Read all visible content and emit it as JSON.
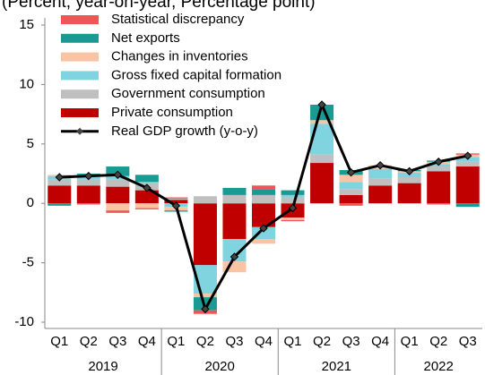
{
  "chart_data": {
    "type": "stacked_bar_line",
    "title": "(Percent, year-on-year, Percentage point)",
    "categories": [
      {
        "quarter": "Q1",
        "year": "2019"
      },
      {
        "quarter": "Q2",
        "year": "2019"
      },
      {
        "quarter": "Q3",
        "year": "2019"
      },
      {
        "quarter": "Q4",
        "year": "2019"
      },
      {
        "quarter": "Q1",
        "year": "2020"
      },
      {
        "quarter": "Q2",
        "year": "2020"
      },
      {
        "quarter": "Q3",
        "year": "2020"
      },
      {
        "quarter": "Q4",
        "year": "2020"
      },
      {
        "quarter": "Q1",
        "year": "2021"
      },
      {
        "quarter": "Q2",
        "year": "2021"
      },
      {
        "quarter": "Q3",
        "year": "2021"
      },
      {
        "quarter": "Q4",
        "year": "2021"
      },
      {
        "quarter": "Q1",
        "year": "2022"
      },
      {
        "quarter": "Q2",
        "year": "2022"
      },
      {
        "quarter": "Q3",
        "year": "2022"
      }
    ],
    "series": [
      {
        "name": "Private consumption",
        "color": "#c00000",
        "values": [
          1.5,
          1.5,
          1.4,
          1.1,
          0.3,
          -5.2,
          -3.0,
          -2.0,
          -1.2,
          3.4,
          0.7,
          1.5,
          1.7,
          2.7,
          3.1
        ]
      },
      {
        "name": "Government consumption",
        "color": "#bfbfbf",
        "values": [
          0.5,
          0.5,
          0.6,
          0.6,
          0.1,
          0.6,
          0.7,
          0.7,
          0.5,
          0.7,
          0.5,
          0.6,
          0.5,
          0.4,
          0.4
        ]
      },
      {
        "name": "Gross fixed capital formation",
        "color": "#7fd4e0",
        "values": [
          0.3,
          0.2,
          0.3,
          0.1,
          -0.3,
          -2.4,
          -1.9,
          -1.0,
          0.2,
          2.6,
          0.6,
          0.8,
          0.4,
          0.2,
          0.4
        ]
      },
      {
        "name": "Changes in inventories",
        "color": "#f8c4a4",
        "values": [
          0.1,
          0.2,
          -0.6,
          -0.4,
          -0.3,
          -0.3,
          -0.9,
          -0.4,
          -0.2,
          0.3,
          0.6,
          0.3,
          0.1,
          0.2,
          0.2
        ]
      },
      {
        "name": "Net exports",
        "color": "#1a9a92",
        "values": [
          -0.2,
          0.1,
          0.8,
          0.6,
          -0.1,
          -1.1,
          0.6,
          0.5,
          0.4,
          1.3,
          0.4,
          0.0,
          0.1,
          0.1,
          -0.3
        ]
      },
      {
        "name": "Statistical discrepancy",
        "color": "#f05454",
        "values": [
          0.0,
          -0.1,
          -0.2,
          -0.1,
          0.1,
          -0.3,
          0.0,
          0.3,
          -0.1,
          0.0,
          -0.2,
          0.0,
          0.0,
          -0.1,
          0.1
        ]
      }
    ],
    "line": {
      "name": "Real GDP growth (y-o-y)",
      "color": "#000000",
      "values": [
        2.2,
        2.3,
        2.4,
        1.3,
        -0.2,
        -8.9,
        -4.5,
        -2.1,
        -0.4,
        8.3,
        2.6,
        3.2,
        2.7,
        3.5,
        4.0
      ]
    },
    "ylim": [
      -10,
      15
    ],
    "yticks": [
      -10,
      -5,
      0,
      5,
      10,
      15
    ],
    "grid": false
  }
}
